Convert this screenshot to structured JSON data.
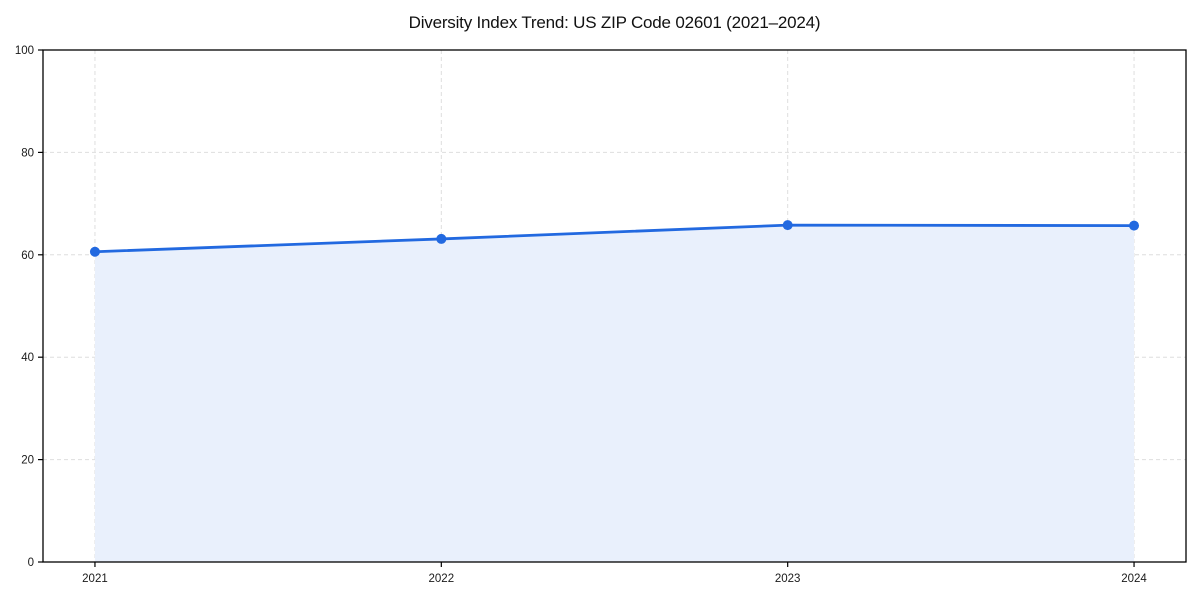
{
  "chart_data": {
    "type": "area",
    "title": "Diversity Index Trend: US ZIP Code 02601 (2021–2024)",
    "categories": [
      "2021",
      "2022",
      "2023",
      "2024"
    ],
    "values": [
      60.6,
      63.1,
      65.8,
      65.7
    ],
    "xlabel": "",
    "ylabel": "",
    "ylim": [
      0,
      100
    ],
    "yticks": [
      0,
      20,
      40,
      60,
      80,
      100
    ],
    "grid": true,
    "legend": false,
    "marker": "circle",
    "colors": {
      "line": "#2269e0",
      "fill": "#e9f0fc",
      "grid": "#dedede",
      "axis": "#000000",
      "text": "#1a1a1a"
    }
  }
}
